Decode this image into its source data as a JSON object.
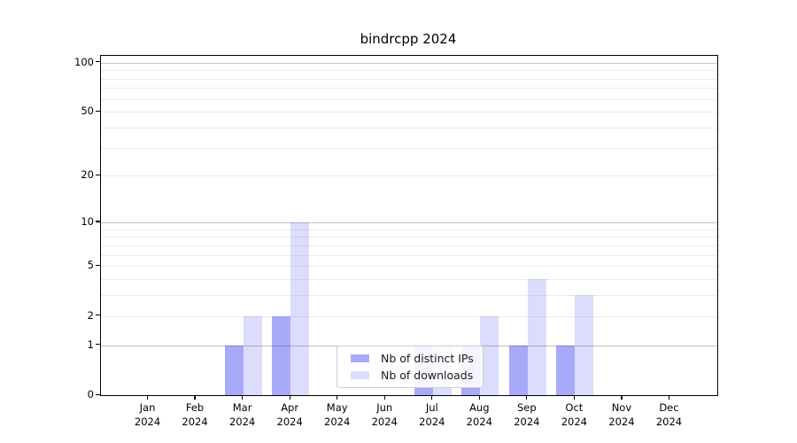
{
  "title": "bindrcpp 2024",
  "legend": {
    "items": [
      {
        "label": "Nb of distinct IPs",
        "color": "rgba(16,16,240,0.36)",
        "solid_hex": "#a9a9f8"
      },
      {
        "label": "Nb of downloads",
        "color": "rgba(16,16,240,0.145)",
        "solid_hex": "#dcdcf8"
      }
    ]
  },
  "chart_data": {
    "type": "bar",
    "title": "bindrcpp 2024",
    "xlabel": "",
    "ylabel": "",
    "x_tick_labels": [
      {
        "month": "Jan",
        "year": "2024"
      },
      {
        "month": "Feb",
        "year": "2024"
      },
      {
        "month": "Mar",
        "year": "2024"
      },
      {
        "month": "Apr",
        "year": "2024"
      },
      {
        "month": "May",
        "year": "2024"
      },
      {
        "month": "Jun",
        "year": "2024"
      },
      {
        "month": "Jul",
        "year": "2024"
      },
      {
        "month": "Aug",
        "year": "2024"
      },
      {
        "month": "Sep",
        "year": "2024"
      },
      {
        "month": "Oct",
        "year": "2024"
      },
      {
        "month": "Nov",
        "year": "2024"
      },
      {
        "month": "Dec",
        "year": "2024"
      }
    ],
    "series": [
      {
        "name": "Nb of distinct IPs",
        "color": "rgba(16,16,240,0.36)",
        "values": [
          0,
          0,
          1,
          2,
          0,
          0,
          1,
          1,
          1,
          1,
          0,
          0
        ]
      },
      {
        "name": "Nb of downloads",
        "color": "rgba(16,16,240,0.145)",
        "values": [
          0,
          0,
          2,
          10,
          0,
          0,
          1,
          2,
          4,
          3,
          0,
          0
        ]
      }
    ],
    "yscale": "log1p",
    "ylim": [
      0,
      110
    ],
    "ytick_values": [
      0,
      1,
      2,
      5,
      10,
      20,
      50,
      100
    ],
    "major_gridlines": [
      1,
      10,
      100
    ],
    "minor_gridlines": [
      2,
      3,
      4,
      5,
      6,
      7,
      8,
      9,
      20,
      30,
      40,
      50,
      60,
      70,
      80,
      90
    ],
    "grid": true,
    "legend_position": "lower center inside"
  },
  "colors": {
    "ips_bar": "#a9a9f8",
    "downloads_bar": "#dcdcf8",
    "major_gridline": "#c3c3c3",
    "minor_gridline": "#ebebeb",
    "axis": "#000000",
    "background": "#ffffff"
  }
}
